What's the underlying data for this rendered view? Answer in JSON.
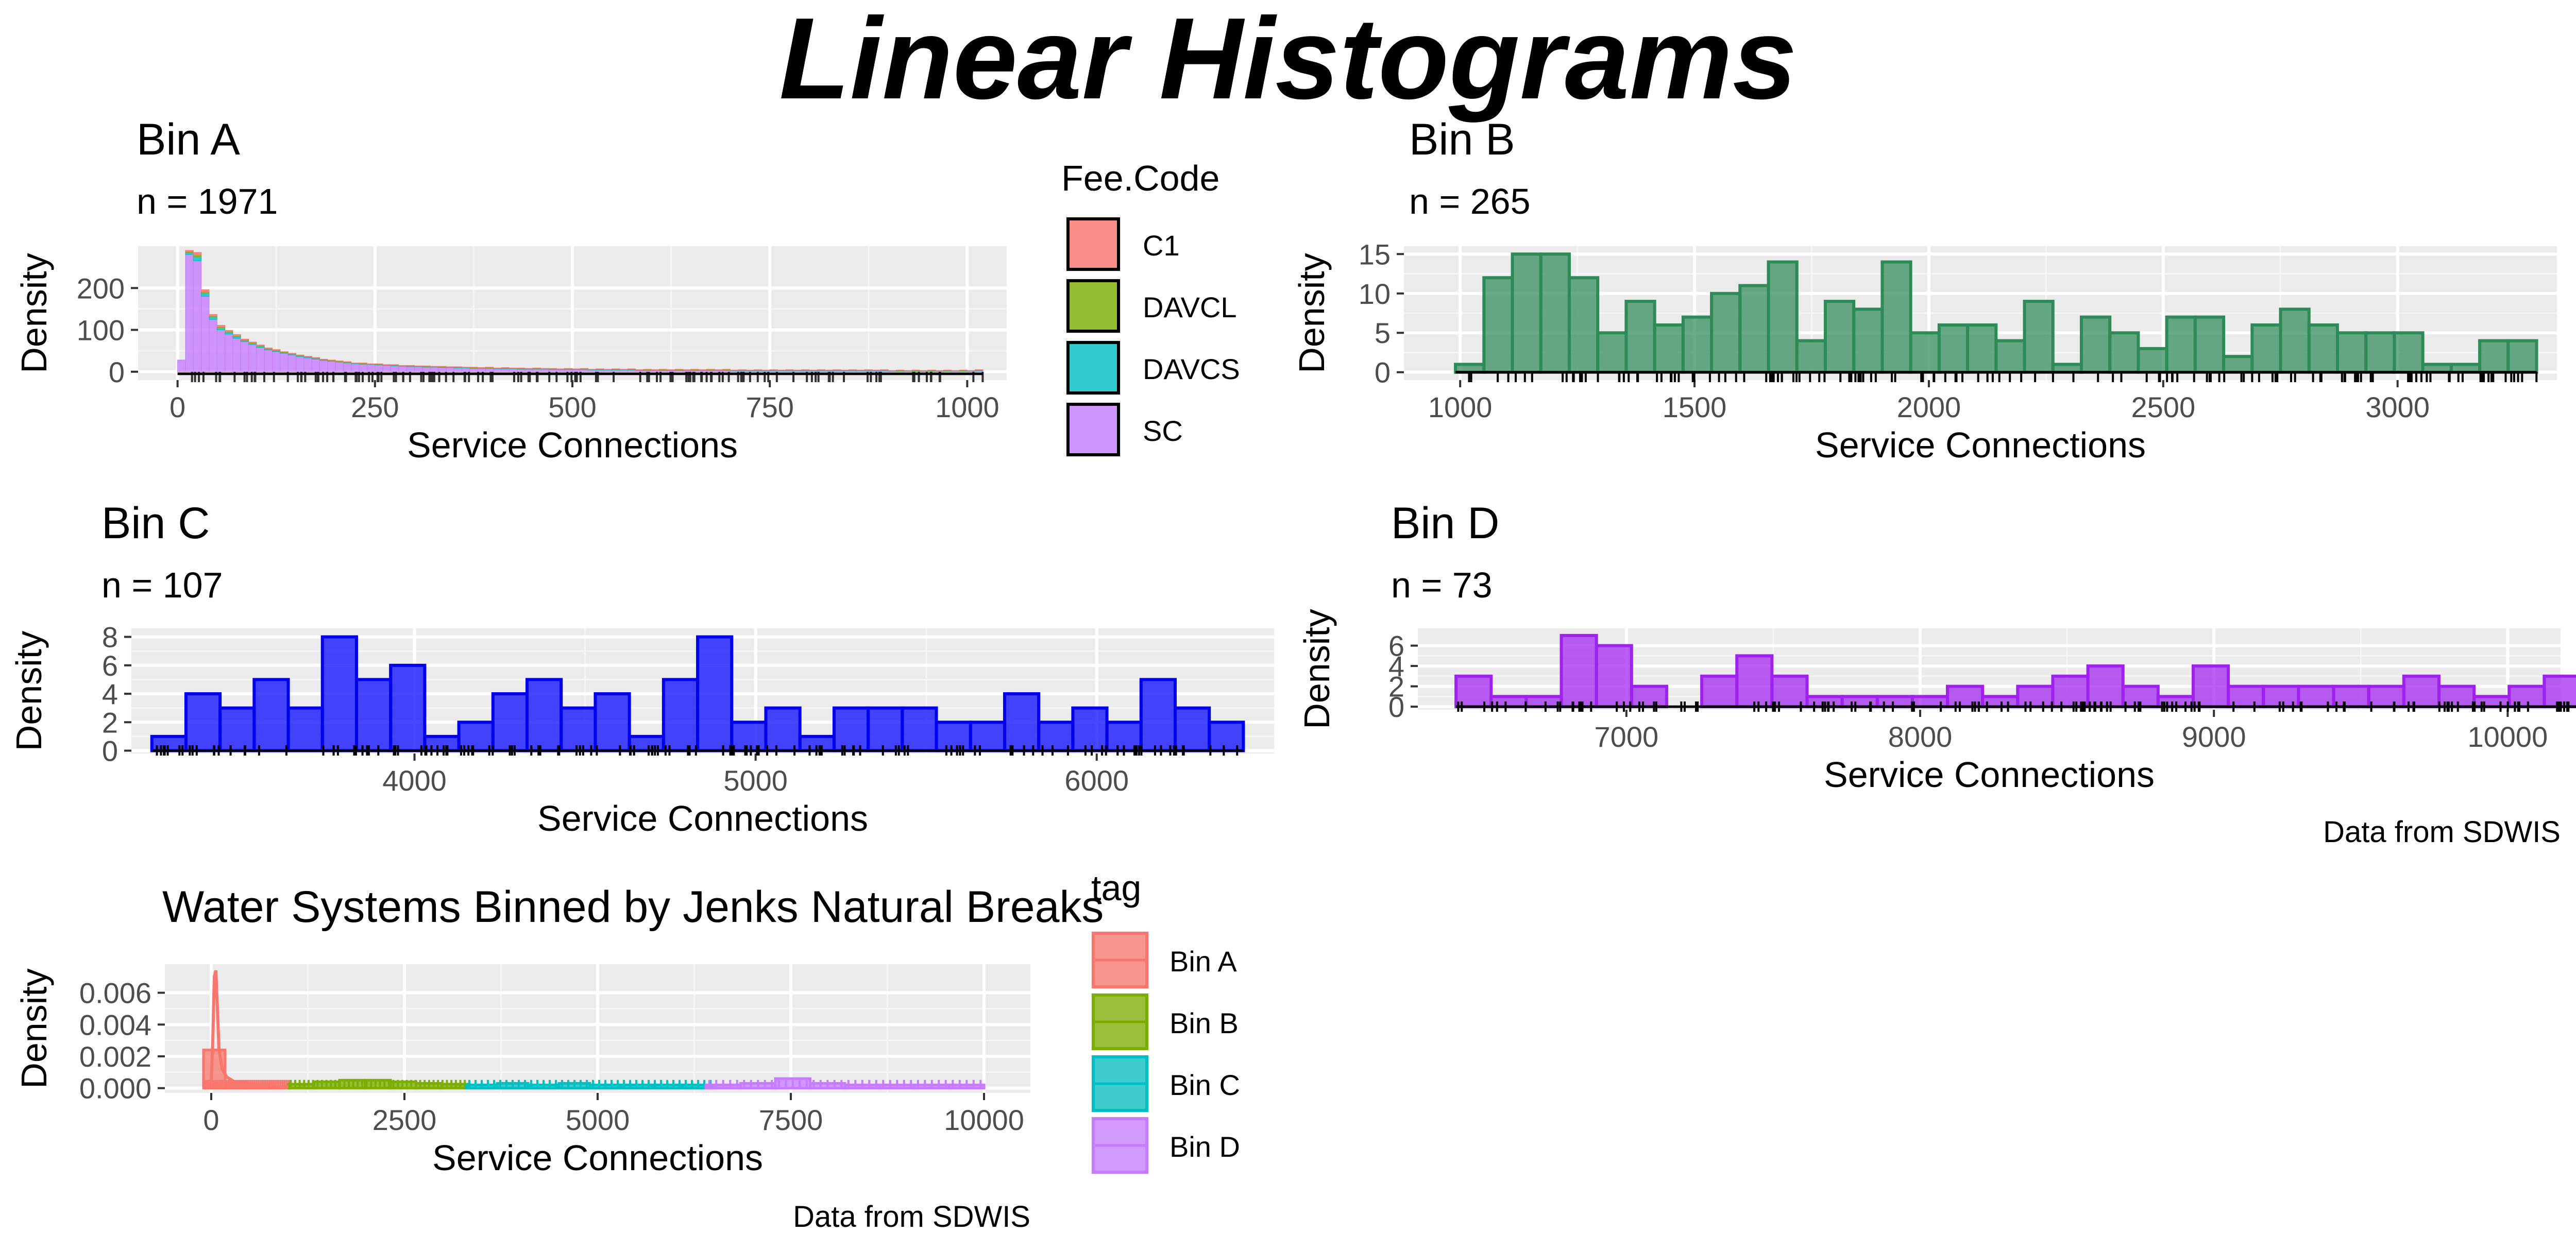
{
  "figure": {
    "title": "Linear Histograms",
    "colors": {
      "C1": "#F8766D",
      "DAVCL": "#7CAE00",
      "DAVCS": "#00BFC4",
      "SC": "#C77CFF",
      "binB_fill": "#2E8B57",
      "binC_fill": "#0000FF",
      "binD_fill": "#A020F0",
      "panel_bg": "#EBEBEB",
      "grid": "#FFFFFF"
    }
  },
  "chart_data": [
    {
      "id": "A",
      "type": "bar",
      "title": "Bin A",
      "subtitle": "n = 1971",
      "xlabel": "Service Connections",
      "ylabel": "Density",
      "xlim": [
        -50,
        1050
      ],
      "ylim": [
        -20,
        300
      ],
      "xticks": [
        0,
        250,
        500,
        750,
        1000
      ],
      "yticks": [
        0,
        100,
        200
      ],
      "grid": true,
      "stacked": true,
      "rug": true,
      "legend": {
        "title": "Fee.Code",
        "position": "right",
        "entries": [
          "C1",
          "DAVCL",
          "DAVCS",
          "SC"
        ]
      },
      "bin_width": 10,
      "x_start": 0,
      "series": [
        {
          "name": "C1",
          "values": [
            0,
            3,
            6,
            5,
            4,
            4,
            3,
            3,
            2,
            2,
            2,
            2,
            2,
            1,
            1,
            1,
            1,
            1,
            1,
            1,
            1,
            1,
            1,
            1,
            1,
            1,
            1,
            1,
            1,
            1,
            1,
            1,
            1,
            1,
            1,
            1,
            1,
            1,
            1,
            1,
            1,
            1,
            1,
            1,
            1,
            1,
            1,
            1,
            1,
            1,
            1,
            1,
            1,
            1,
            1,
            1,
            1,
            1,
            1,
            1,
            1,
            1,
            1,
            1,
            1,
            1,
            1,
            1,
            1,
            1,
            1,
            1,
            1,
            1,
            1,
            1,
            1,
            1,
            1,
            1,
            1,
            1,
            1,
            1,
            1,
            1,
            1,
            1,
            1,
            1,
            1,
            1,
            1,
            1,
            1,
            1,
            1,
            1,
            1,
            1,
            1,
            1
          ]
        },
        {
          "name": "DAVCL",
          "values": [
            0,
            2,
            4,
            3,
            2,
            2,
            2,
            2,
            1,
            1,
            1,
            1,
            1,
            1,
            1,
            1,
            1,
            1,
            1,
            1,
            1,
            1,
            0,
            1,
            0,
            1,
            0,
            1,
            0,
            1,
            0,
            1,
            0,
            1,
            0,
            1,
            0,
            1,
            0,
            1,
            0,
            1,
            0,
            1,
            0,
            1,
            0,
            1,
            0,
            1,
            0,
            1,
            0,
            1,
            0,
            1,
            0,
            1,
            0,
            1,
            0,
            1,
            0,
            1,
            0,
            1,
            0,
            1,
            0,
            1,
            0,
            1,
            0,
            1,
            0,
            1,
            0,
            1,
            0,
            1,
            0,
            1,
            0,
            1,
            0,
            1,
            0,
            1,
            0,
            1,
            0,
            1,
            0,
            1,
            0,
            1,
            0,
            1,
            0,
            1,
            0,
            1
          ]
        },
        {
          "name": "DAVCS",
          "values": [
            0,
            5,
            10,
            8,
            6,
            5,
            4,
            4,
            3,
            3,
            3,
            2,
            2,
            2,
            2,
            2,
            2,
            2,
            1,
            1,
            1,
            1,
            1,
            1,
            1,
            1,
            1,
            1,
            1,
            1,
            1,
            1,
            1,
            1,
            1,
            1,
            1,
            1,
            1,
            1,
            1,
            1,
            1,
            1,
            1,
            1,
            1,
            1,
            1,
            1,
            1,
            1,
            1,
            1,
            1,
            1,
            1,
            1,
            1,
            1,
            1,
            1,
            1,
            1,
            1,
            1,
            1,
            1,
            1,
            1,
            1,
            1,
            1,
            1,
            1,
            1,
            1,
            1,
            1,
            1,
            1,
            1,
            1,
            1,
            1,
            1,
            1,
            1,
            1,
            1,
            1,
            1,
            1,
            1,
            1,
            1,
            1,
            1,
            1,
            1,
            1,
            1
          ]
        },
        {
          "name": "SC",
          "values": [
            28,
            280,
            265,
            180,
            125,
            100,
            90,
            80,
            72,
            65,
            58,
            52,
            48,
            44,
            40,
            36,
            33,
            30,
            27,
            25,
            23,
            21,
            19,
            18,
            17,
            16,
            15,
            14,
            13,
            12,
            12,
            11,
            11,
            10,
            10,
            9,
            9,
            8,
            8,
            8,
            7,
            7,
            7,
            6,
            6,
            6,
            6,
            5,
            5,
            5,
            5,
            5,
            4,
            4,
            4,
            4,
            4,
            4,
            3,
            3,
            3,
            3,
            3,
            3,
            3,
            3,
            3,
            3,
            3,
            3,
            2,
            2,
            2,
            2,
            2,
            2,
            2,
            2,
            2,
            2,
            2,
            2,
            2,
            2,
            2,
            2,
            2,
            2,
            2,
            2,
            1,
            1,
            1,
            1,
            1,
            1,
            1,
            1,
            1,
            1,
            1,
            2
          ]
        }
      ]
    },
    {
      "id": "B",
      "type": "bar",
      "title": "Bin B",
      "subtitle": "n = 265",
      "xlabel": "Service Connections",
      "ylabel": "Density",
      "xlim": [
        880,
        3340
      ],
      "ylim": [
        -1,
        16
      ],
      "xticks": [
        1000,
        1500,
        2000,
        2500,
        3000
      ],
      "yticks": [
        0,
        5,
        10,
        15
      ],
      "grid": true,
      "rug": true,
      "bin_width": 60.7,
      "x_start": 990,
      "values": [
        1,
        12,
        15,
        15,
        12,
        5,
        9,
        6,
        7,
        10,
        11,
        14,
        4,
        9,
        8,
        14,
        5,
        6,
        6,
        4,
        9,
        1,
        7,
        5,
        3,
        7,
        7,
        2,
        6,
        8,
        6,
        5,
        5,
        5,
        1,
        1,
        4,
        4
      ]
    },
    {
      "id": "C",
      "type": "bar",
      "title": "Bin C",
      "subtitle": "n = 107",
      "xlabel": "Service Connections",
      "ylabel": "Density",
      "xlim": [
        3170,
        6520
      ],
      "ylim": [
        -0.2,
        8.6
      ],
      "xticks": [
        4000,
        5000,
        6000
      ],
      "yticks": [
        0,
        2,
        4,
        6,
        8
      ],
      "grid": true,
      "rug": true,
      "bin_width": 100,
      "x_start": 3230,
      "values": [
        1,
        4,
        3,
        5,
        3,
        8,
        5,
        6,
        1,
        2,
        4,
        5,
        3,
        4,
        1,
        5,
        8,
        2,
        3,
        1,
        3,
        3,
        3,
        2,
        2,
        4,
        2,
        3,
        2,
        5,
        3,
        2
      ]
    },
    {
      "id": "D",
      "type": "bar",
      "title": "Bin D",
      "subtitle": "n = 73",
      "xlabel": "Service Connections",
      "ylabel": "Density",
      "caption": "Data from SDWIS",
      "xlim": [
        6290,
        10180
      ],
      "ylim": [
        -0.3,
        7.7
      ],
      "xticks": [
        7000,
        8000,
        9000,
        10000
      ],
      "yticks": [
        0,
        2,
        4,
        6
      ],
      "grid": true,
      "rug": true,
      "bin_width": 119.5,
      "x_start": 6420,
      "values": [
        3,
        1,
        1,
        7,
        6,
        2,
        0,
        3,
        5,
        3,
        1,
        1,
        1,
        1,
        2,
        1,
        2,
        3,
        4,
        2,
        1,
        4,
        2,
        2,
        2,
        2,
        2,
        3,
        2,
        1,
        2,
        3,
        2
      ]
    },
    {
      "id": "E",
      "type": "area",
      "title": "Water Systems Binned by Jenks Natural Breaks",
      "xlabel": "Service Connections",
      "ylabel": "Density",
      "caption": "Data from SDWIS",
      "xlim": [
        -600,
        10600
      ],
      "ylim": [
        -0.0003,
        0.0078
      ],
      "xticks": [
        0,
        2500,
        5000,
        7500,
        10000
      ],
      "yticks": [
        0.0,
        0.002,
        0.004,
        0.006
      ],
      "ytick_labels": [
        "0.000",
        "0.002",
        "0.004",
        "0.006"
      ],
      "grid": true,
      "rug": true,
      "legend": {
        "title": "tag",
        "position": "right",
        "entries": [
          "Bin A",
          "Bin B",
          "Bin C",
          "Bin D"
        ]
      },
      "histograms": [
        {
          "name": "Bin A",
          "x_start": -100,
          "bin_width": 280,
          "values": [
            0.0024,
            0.0004,
            0.0002,
            0.0001
          ]
        },
        {
          "name": "Bin B",
          "x_start": 1000,
          "bin_width": 330,
          "values": [
            0.00025,
            0.0004,
            0.0005,
            0.0005,
            0.0004,
            0.0003,
            0.00025
          ]
        },
        {
          "name": "Bin C",
          "x_start": 3300,
          "bin_width": 400,
          "values": [
            0.0002,
            0.0003,
            0.0002,
            0.0003,
            0.0002,
            0.0002,
            0.0002,
            0.0002
          ]
        },
        {
          "name": "Bin D",
          "x_start": 6400,
          "bin_width": 450,
          "values": [
            0.0002,
            0.0003,
            0.0006,
            0.0003,
            0.0002,
            0.0002,
            0.0002,
            0.0002
          ]
        }
      ],
      "density_line": {
        "name": "Bin A",
        "x": [
          0,
          20,
          40,
          60,
          80,
          100,
          140,
          200,
          300,
          450,
          700,
          1000
        ],
        "y": [
          0.0005,
          0.003,
          0.007,
          0.0074,
          0.005,
          0.0025,
          0.0012,
          0.0007,
          0.0004,
          0.0002,
          0.0001,
          0.0001
        ]
      }
    }
  ]
}
